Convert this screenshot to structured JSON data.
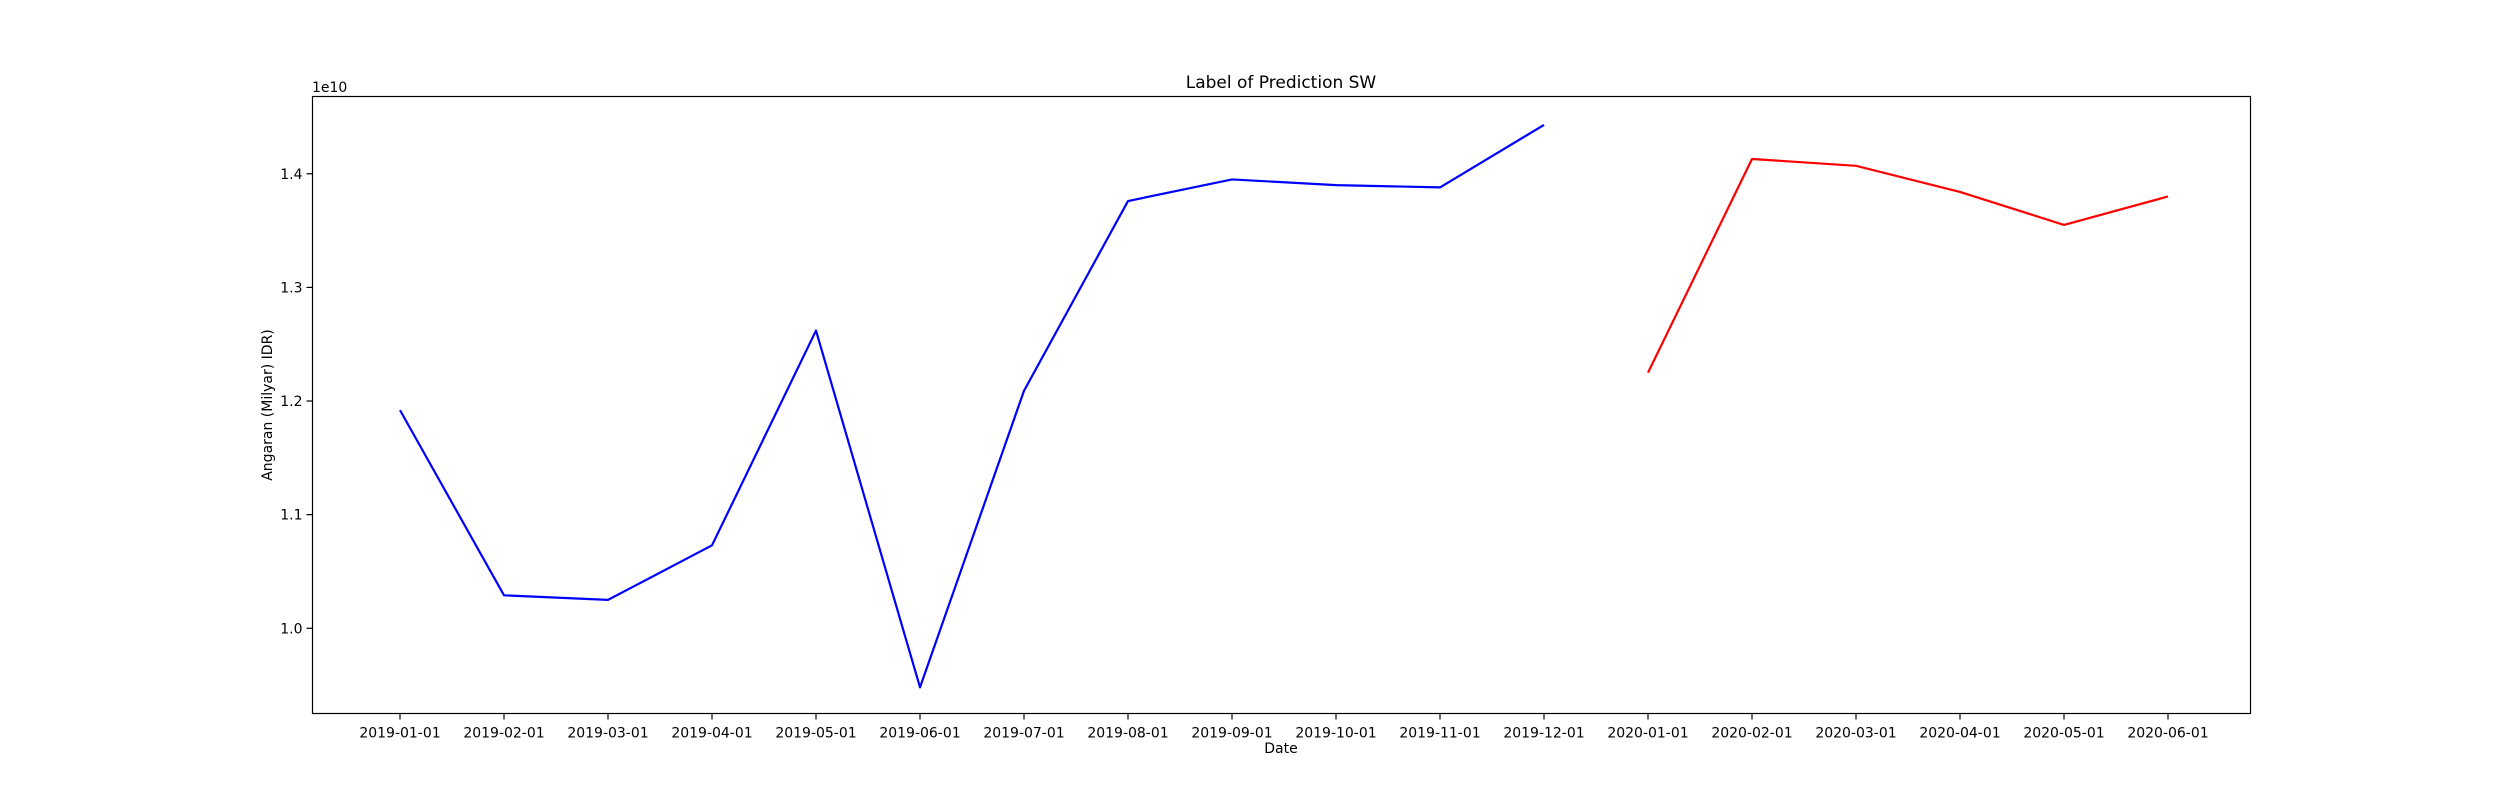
{
  "chart_data": {
    "type": "line",
    "title": "Label of Prediction SW",
    "xlabel": "Date",
    "ylabel": "Angaran (Milyar) IDR)",
    "y_offset_label": "1e10",
    "categories": [
      "2019-01-01",
      "2019-02-01",
      "2019-03-01",
      "2019-04-01",
      "2019-05-01",
      "2019-06-01",
      "2019-07-01",
      "2019-08-01",
      "2019-09-01",
      "2019-10-01",
      "2019-11-01",
      "2019-12-01",
      "2020-01-01",
      "2020-02-01",
      "2020-03-01",
      "2020-04-01",
      "2020-05-01",
      "2020-06-01"
    ],
    "y_ticks": [
      1.0,
      1.1,
      1.2,
      1.3,
      1.4
    ],
    "ylim": [
      0.925,
      1.468
    ],
    "grid": false,
    "series": [
      {
        "color": "#0000ff",
        "x": [
          "2019-01-01",
          "2019-02-01",
          "2019-03-01",
          "2019-04-01",
          "2019-05-01",
          "2019-06-01",
          "2019-07-01",
          "2019-08-01",
          "2019-09-01",
          "2019-10-01",
          "2019-11-01",
          "2019-12-01"
        ],
        "values": [
          1.192,
          1.029,
          1.025,
          1.073,
          1.262,
          0.948,
          1.209,
          1.376,
          1.395,
          1.39,
          1.388,
          1.443
        ]
      },
      {
        "color": "#ff0000",
        "x": [
          "2020-01-01",
          "2020-02-01",
          "2020-03-01",
          "2020-04-01",
          "2020-05-01",
          "2020-06-01"
        ],
        "values": [
          1.225,
          1.413,
          1.407,
          1.384,
          1.355,
          1.38
        ]
      }
    ]
  }
}
